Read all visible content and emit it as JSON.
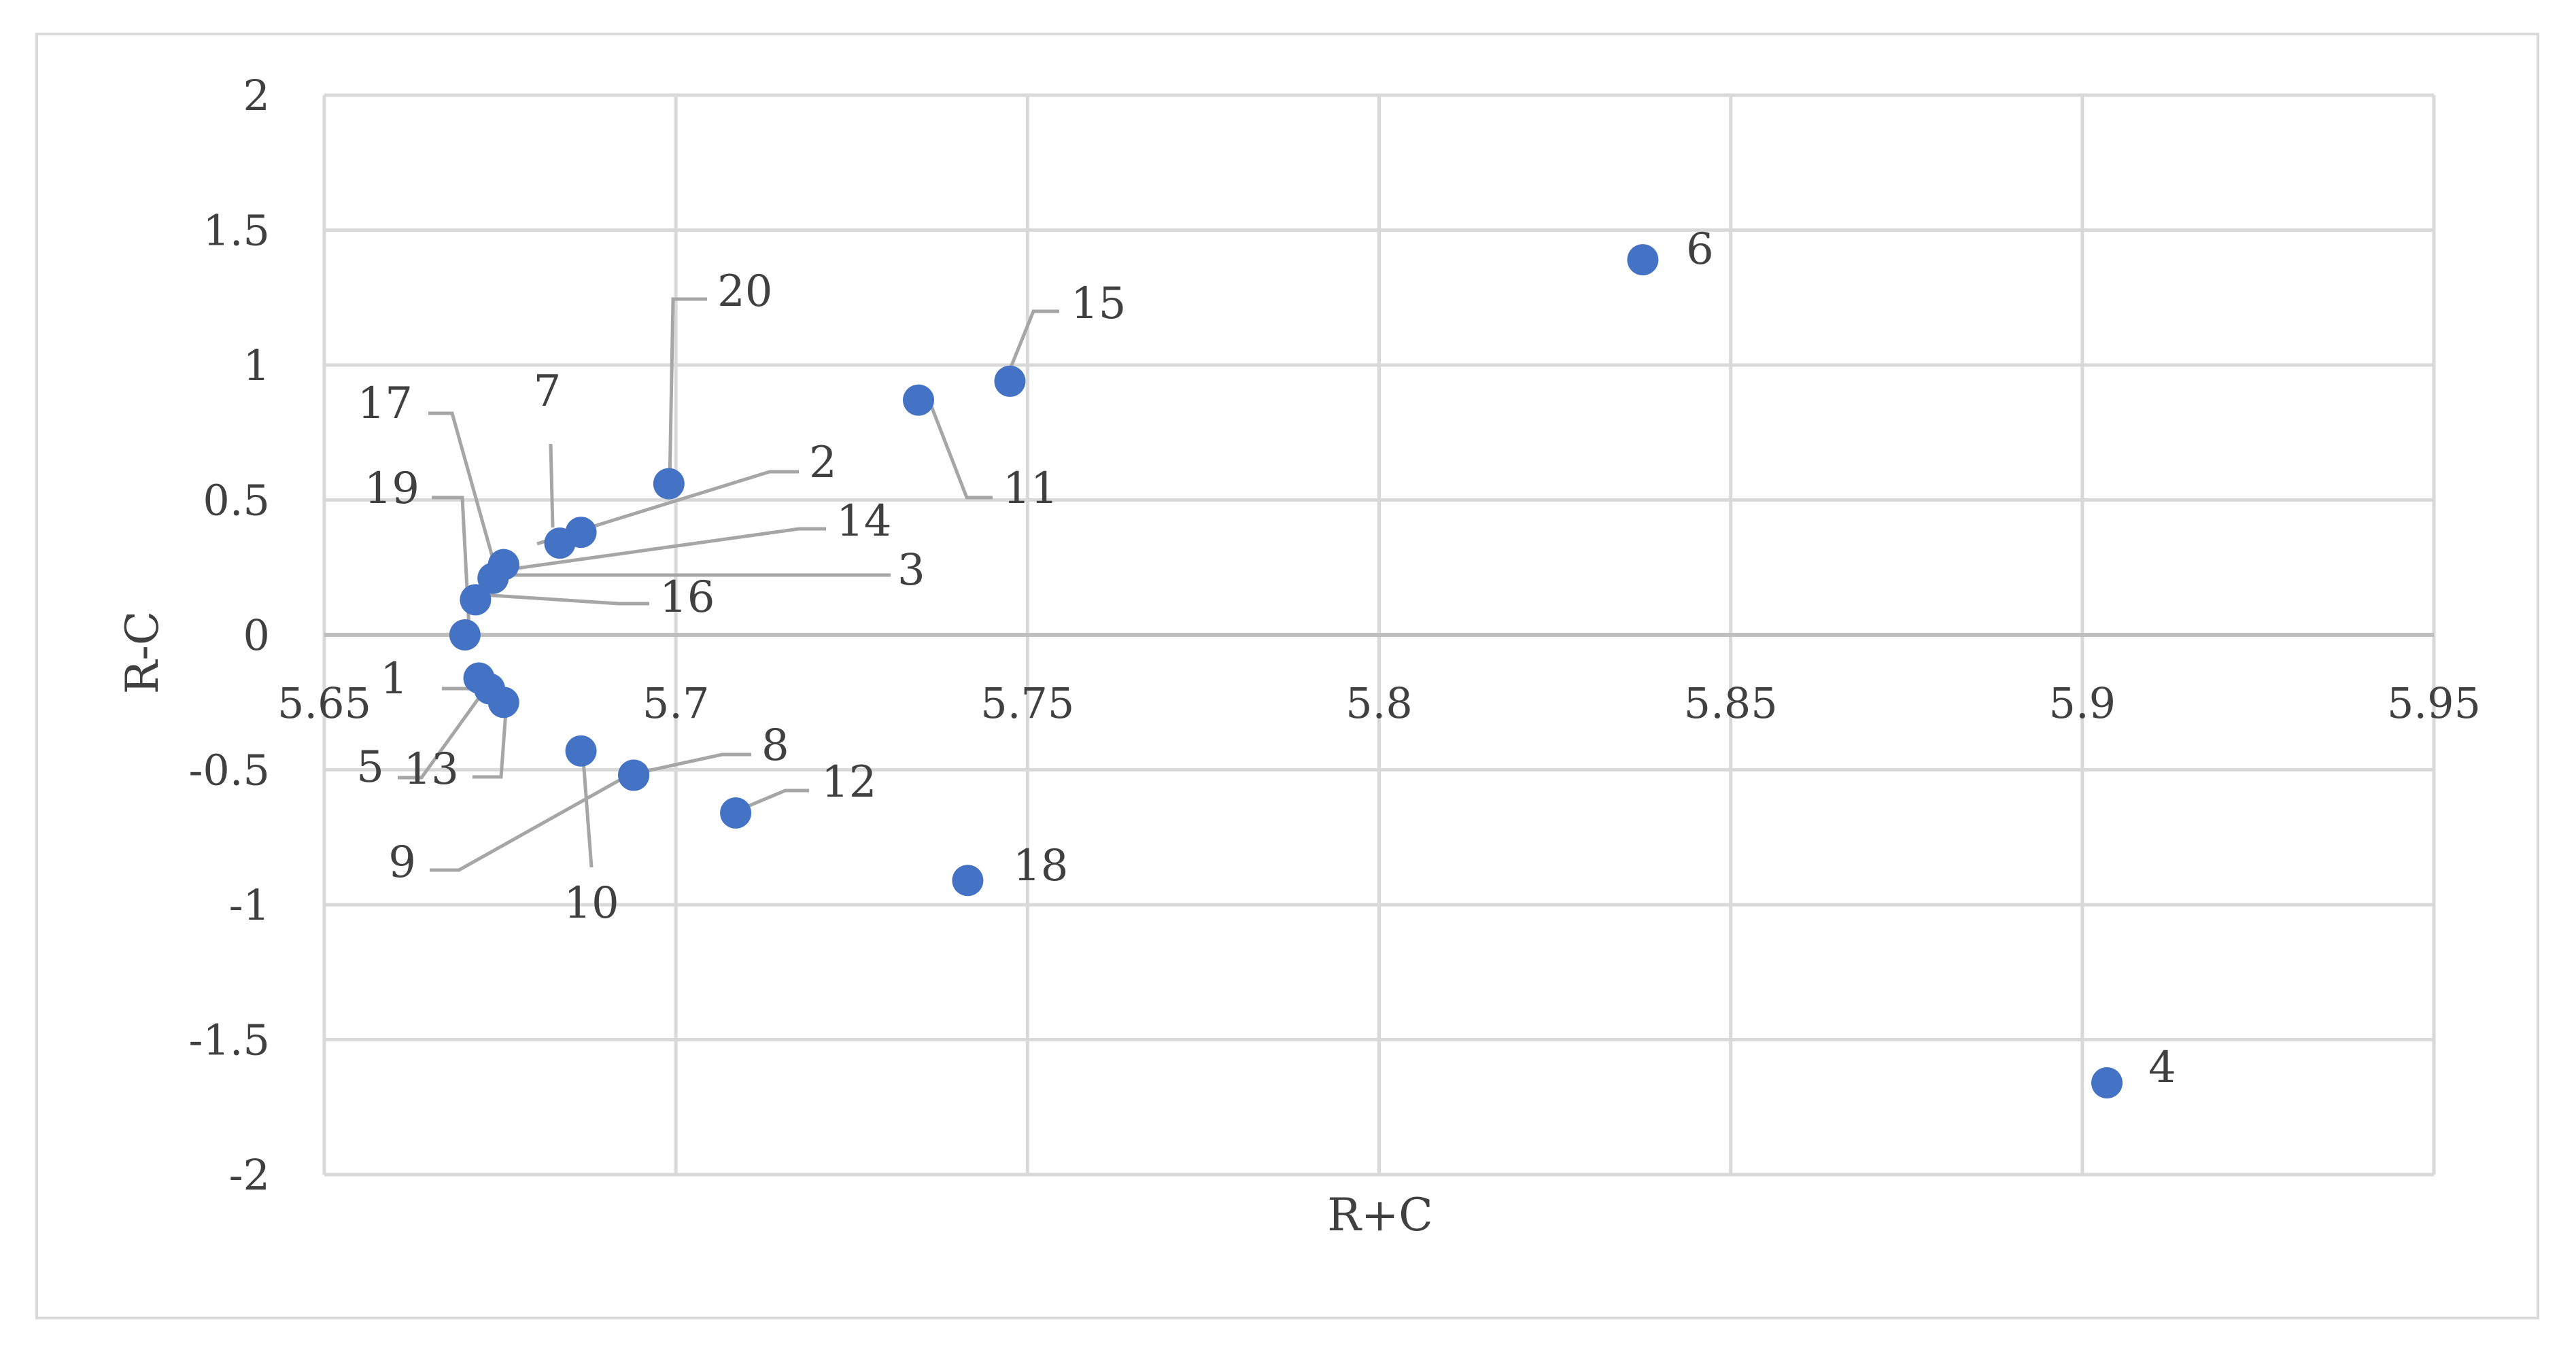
{
  "chart_data": {
    "type": "scatter",
    "title": "",
    "xlabel": "R+C",
    "ylabel": "R-C",
    "xlim": [
      5.65,
      5.95
    ],
    "ylim": [
      -2,
      2
    ],
    "grid": true,
    "legend": "none",
    "marker_color": "#4472c4",
    "x_ticks": [
      5.65,
      5.7,
      5.75,
      5.8,
      5.85,
      5.9,
      5.95
    ],
    "x_tick_labels": [
      "5.65",
      "5.7",
      "5.75",
      "5.8",
      "5.85",
      "5.9",
      "5.95"
    ],
    "y_ticks": [
      2,
      1.5,
      1,
      0.5,
      0,
      -0.5,
      -1,
      -1.5,
      -2
    ],
    "y_tick_labels": [
      "2",
      "1.5",
      "1",
      "0.5",
      "0",
      "-0.5",
      "-1",
      "-1.5",
      "-2"
    ],
    "points": [
      {
        "label": "1",
        "x": 5.672,
        "y": -0.16
      },
      {
        "label": "2",
        "x": 5.6835,
        "y": 0.34
      },
      {
        "label": "3",
        "x": 5.674,
        "y": 0.21
      },
      {
        "label": "4",
        "x": 5.9035,
        "y": -1.66
      },
      {
        "label": "5",
        "x": 5.6735,
        "y": -0.2
      },
      {
        "label": "6",
        "x": 5.8375,
        "y": 1.39
      },
      {
        "label": "7",
        "x": 5.6865,
        "y": 0.38
      },
      {
        "label": "8",
        "x": 5.694,
        "y": -0.52
      },
      {
        "label": "9",
        "x": 5.694,
        "y": -0.52
      },
      {
        "label": "10",
        "x": 5.6865,
        "y": -0.43
      },
      {
        "label": "11",
        "x": 5.7345,
        "y": 0.87
      },
      {
        "label": "12",
        "x": 5.7085,
        "y": -0.66
      },
      {
        "label": "13",
        "x": 5.6755,
        "y": -0.25
      },
      {
        "label": "14",
        "x": 5.6755,
        "y": 0.26
      },
      {
        "label": "15",
        "x": 5.7475,
        "y": 0.94
      },
      {
        "label": "16",
        "x": 5.6715,
        "y": 0.13
      },
      {
        "label": "17",
        "x": 5.6755,
        "y": 0.26
      },
      {
        "label": "18",
        "x": 5.7415,
        "y": -0.91
      },
      {
        "label": "19",
        "x": 5.67,
        "y": 0.0
      },
      {
        "label": "20",
        "x": 5.699,
        "y": 0.56
      }
    ]
  }
}
